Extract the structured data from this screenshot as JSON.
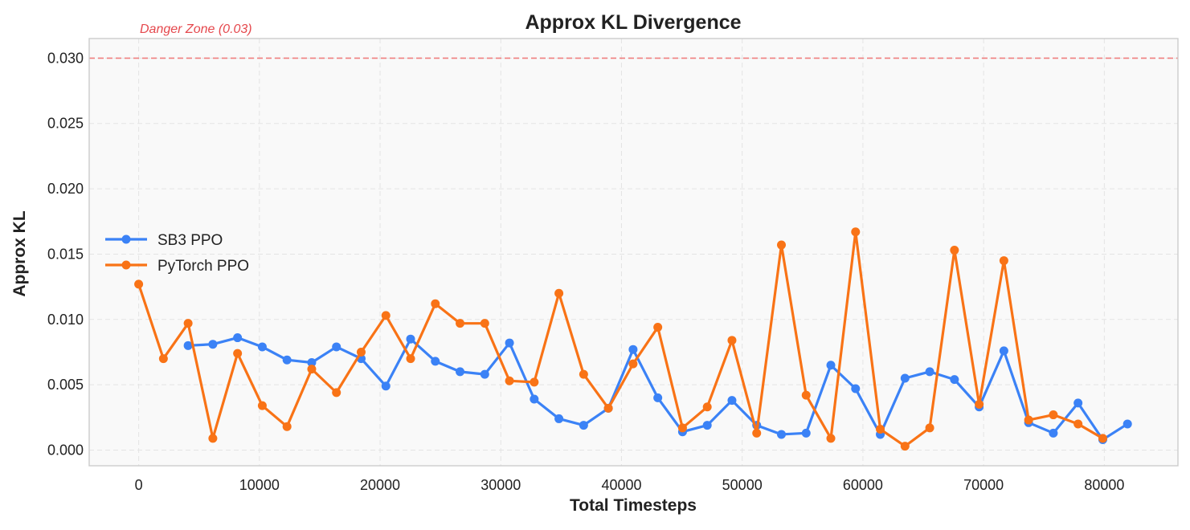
{
  "chart_data": {
    "type": "line",
    "title": "Approx KL Divergence",
    "xlabel": "Total Timesteps",
    "ylabel": "Approx KL",
    "xlim": [
      -4100,
      86100
    ],
    "ylim": [
      -0.0012,
      0.0315
    ],
    "x_ticks": [
      0,
      10000,
      20000,
      30000,
      40000,
      50000,
      60000,
      70000,
      80000
    ],
    "y_ticks": [
      0.0,
      0.005,
      0.01,
      0.015,
      0.02,
      0.025,
      0.03
    ],
    "x_tick_labels": [
      "0",
      "10000",
      "20000",
      "30000",
      "40000",
      "50000",
      "60000",
      "70000",
      "80000"
    ],
    "y_tick_labels": [
      "0.000",
      "0.005",
      "0.010",
      "0.015",
      "0.020",
      "0.025",
      "0.030"
    ],
    "grid": true,
    "legend_position": "center-left",
    "annotation": {
      "text": "Danger Zone (0.03)",
      "y": 0.03,
      "color": "#e5484d"
    },
    "series": [
      {
        "name": "SB3 PPO",
        "color": "#3b82f6",
        "points": [
          [
            4096,
            0.008
          ],
          [
            6144,
            0.0081
          ],
          [
            8192,
            0.0086
          ],
          [
            10240,
            0.0079
          ],
          [
            12288,
            0.0069
          ],
          [
            14336,
            0.0067
          ],
          [
            16384,
            0.0079
          ],
          [
            18432,
            0.007
          ],
          [
            20480,
            0.0049
          ],
          [
            22528,
            0.0085
          ],
          [
            24576,
            0.0068
          ],
          [
            26624,
            0.006
          ],
          [
            28672,
            0.0058
          ],
          [
            30720,
            0.0082
          ],
          [
            32768,
            0.0039
          ],
          [
            34816,
            0.0024
          ],
          [
            36864,
            0.0019
          ],
          [
            38912,
            0.0032
          ],
          [
            40960,
            0.0077
          ],
          [
            43008,
            0.004
          ],
          [
            45056,
            0.0014
          ],
          [
            47104,
            0.0019
          ],
          [
            49152,
            0.0038
          ],
          [
            51200,
            0.0019
          ],
          [
            53248,
            0.0012
          ],
          [
            55296,
            0.0013
          ],
          [
            57344,
            0.0065
          ],
          [
            59392,
            0.0047
          ],
          [
            61440,
            0.0012
          ],
          [
            63488,
            0.0055
          ],
          [
            65536,
            0.006
          ],
          [
            67584,
            0.0054
          ],
          [
            69632,
            0.0033
          ],
          [
            71680,
            0.0076
          ],
          [
            73728,
            0.0021
          ],
          [
            75776,
            0.0013
          ],
          [
            77824,
            0.0036
          ],
          [
            79872,
            0.0008
          ],
          [
            81920,
            0.002
          ]
        ]
      },
      {
        "name": "PyTorch PPO",
        "color": "#f97316",
        "points": [
          [
            0,
            0.0127
          ],
          [
            2048,
            0.007
          ],
          [
            4096,
            0.0097
          ],
          [
            6144,
            0.0009
          ],
          [
            8192,
            0.0074
          ],
          [
            10240,
            0.0034
          ],
          [
            12288,
            0.0018
          ],
          [
            14336,
            0.0062
          ],
          [
            16384,
            0.0044
          ],
          [
            18432,
            0.0075
          ],
          [
            20480,
            0.0103
          ],
          [
            22528,
            0.007
          ],
          [
            24576,
            0.0112
          ],
          [
            26624,
            0.0097
          ],
          [
            28672,
            0.0097
          ],
          [
            30720,
            0.0053
          ],
          [
            32768,
            0.0052
          ],
          [
            34816,
            0.012
          ],
          [
            36864,
            0.0058
          ],
          [
            38912,
            0.0032
          ],
          [
            40960,
            0.0066
          ],
          [
            43008,
            0.0094
          ],
          [
            45056,
            0.0017
          ],
          [
            47104,
            0.0033
          ],
          [
            49152,
            0.0084
          ],
          [
            51200,
            0.0013
          ],
          [
            53248,
            0.0157
          ],
          [
            55296,
            0.0042
          ],
          [
            57344,
            0.0009
          ],
          [
            59392,
            0.0167
          ],
          [
            61440,
            0.0016
          ],
          [
            63488,
            0.0003
          ],
          [
            65536,
            0.0017
          ],
          [
            67584,
            0.0153
          ],
          [
            69632,
            0.0035
          ],
          [
            71680,
            0.0145
          ],
          [
            73728,
            0.0023
          ],
          [
            75776,
            0.0027
          ],
          [
            77824,
            0.002
          ],
          [
            79872,
            0.0009
          ]
        ]
      }
    ]
  }
}
